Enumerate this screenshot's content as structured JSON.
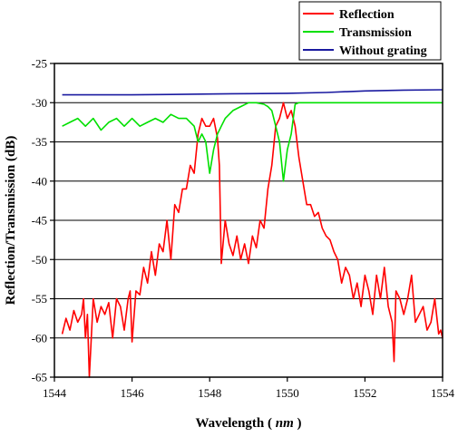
{
  "chart_data": {
    "type": "line",
    "xlabel_main": "Wavelength",
    "xlabel_unit": "nm",
    "ylabel": "Reflection/Transmission (dB)",
    "xlim": [
      1544,
      1554
    ],
    "ylim": [
      -65,
      -25
    ],
    "xticks": [
      1544,
      1546,
      1548,
      1550,
      1552,
      1554
    ],
    "yticks": [
      -25,
      -30,
      -35,
      -40,
      -45,
      -50,
      -55,
      -60,
      -65
    ],
    "grid": "horizontal",
    "legend_position": "top-right",
    "series": [
      {
        "name": "Reflection",
        "color": "#ff0000",
        "x": [
          1544.2,
          1544.3,
          1544.4,
          1544.5,
          1544.6,
          1544.7,
          1544.75,
          1544.8,
          1544.85,
          1544.9,
          1545.0,
          1545.1,
          1545.2,
          1545.3,
          1545.4,
          1545.5,
          1545.6,
          1545.7,
          1545.8,
          1545.9,
          1545.95,
          1546.0,
          1546.1,
          1546.2,
          1546.3,
          1546.4,
          1546.5,
          1546.6,
          1546.7,
          1546.8,
          1546.9,
          1547.0,
          1547.1,
          1547.2,
          1547.3,
          1547.4,
          1547.5,
          1547.6,
          1547.7,
          1547.8,
          1547.9,
          1548.0,
          1548.1,
          1548.2,
          1548.25,
          1548.3,
          1548.4,
          1548.5,
          1548.6,
          1548.7,
          1548.8,
          1548.9,
          1549.0,
          1549.1,
          1549.2,
          1549.3,
          1549.4,
          1549.5,
          1549.6,
          1549.7,
          1549.8,
          1549.9,
          1550.0,
          1550.1,
          1550.2,
          1550.3,
          1550.4,
          1550.5,
          1550.6,
          1550.7,
          1550.8,
          1550.9,
          1551.0,
          1551.1,
          1551.2,
          1551.3,
          1551.4,
          1551.5,
          1551.6,
          1551.7,
          1551.8,
          1551.9,
          1552.0,
          1552.1,
          1552.2,
          1552.3,
          1552.4,
          1552.5,
          1552.6,
          1552.7,
          1552.75,
          1552.8,
          1552.9,
          1553.0,
          1553.1,
          1553.2,
          1553.3,
          1553.4,
          1553.5,
          1553.6,
          1553.7,
          1553.8,
          1553.9,
          1553.95,
          1554.0
        ],
        "y": [
          -59.5,
          -57.5,
          -59,
          -56.5,
          -58,
          -57,
          -55,
          -60,
          -57,
          -65,
          -55,
          -58,
          -56,
          -57,
          -55.5,
          -60,
          -55,
          -56,
          -59,
          -55,
          -54,
          -60.5,
          -54,
          -54.5,
          -51,
          -53,
          -49,
          -52,
          -48,
          -49,
          -45,
          -50,
          -43,
          -44,
          -41,
          -41,
          -38,
          -39,
          -34,
          -32,
          -33,
          -33,
          -32,
          -34.5,
          -38,
          -50.5,
          -45,
          -48,
          -49.5,
          -47,
          -50,
          -48,
          -50.5,
          -47,
          -48.5,
          -45,
          -46,
          -41,
          -38,
          -33,
          -32,
          -30,
          -32,
          -31,
          -33,
          -37,
          -40,
          -43,
          -43,
          -44.5,
          -44,
          -46,
          -47,
          -47.5,
          -49,
          -50,
          -53,
          -51,
          -52,
          -55,
          -53,
          -56,
          -52,
          -54,
          -57,
          -52,
          -55,
          -51,
          -56,
          -58,
          -63,
          -54,
          -55,
          -57,
          -55,
          -52,
          -58,
          -57,
          -56,
          -59,
          -58,
          -55,
          -59.5,
          -59,
          -60
        ]
      },
      {
        "name": "Transmission",
        "color": "#00e000",
        "x": [
          1544.2,
          1544.4,
          1544.6,
          1544.8,
          1545.0,
          1545.2,
          1545.4,
          1545.6,
          1545.8,
          1546.0,
          1546.2,
          1546.4,
          1546.6,
          1546.8,
          1547.0,
          1547.2,
          1547.4,
          1547.6,
          1547.7,
          1547.8,
          1547.9,
          1548.0,
          1548.1,
          1548.2,
          1548.3,
          1548.4,
          1548.6,
          1548.8,
          1549.0,
          1549.2,
          1549.4,
          1549.5,
          1549.6,
          1549.7,
          1549.8,
          1549.9,
          1550.0,
          1550.1,
          1550.2,
          1550.3,
          1550.5,
          1551.0,
          1551.5,
          1552.0,
          1552.5,
          1553.0,
          1553.5,
          1554.0
        ],
        "y": [
          -33,
          -32.5,
          -32,
          -33,
          -32,
          -33.5,
          -32.5,
          -32,
          -33,
          -32,
          -33,
          -32.5,
          -32,
          -32.5,
          -31.5,
          -32,
          -32,
          -33,
          -35,
          -34,
          -35,
          -39,
          -36,
          -34,
          -33,
          -32,
          -31,
          -30.5,
          -30,
          -30,
          -30.2,
          -30.5,
          -31,
          -33,
          -35,
          -40,
          -36,
          -34,
          -30.2,
          -30,
          -30,
          -30,
          -30,
          -30,
          -30,
          -30,
          -30,
          -30
        ]
      },
      {
        "name": "Without grating",
        "color": "#1a1aa0",
        "x": [
          1544.2,
          1545.0,
          1546.0,
          1547.0,
          1548.0,
          1549.0,
          1550.0,
          1551.0,
          1552.0,
          1553.0,
          1554.0
        ],
        "y": [
          -29,
          -29,
          -29,
          -28.95,
          -28.9,
          -28.85,
          -28.8,
          -28.7,
          -28.5,
          -28.4,
          -28.35
        ]
      }
    ]
  }
}
